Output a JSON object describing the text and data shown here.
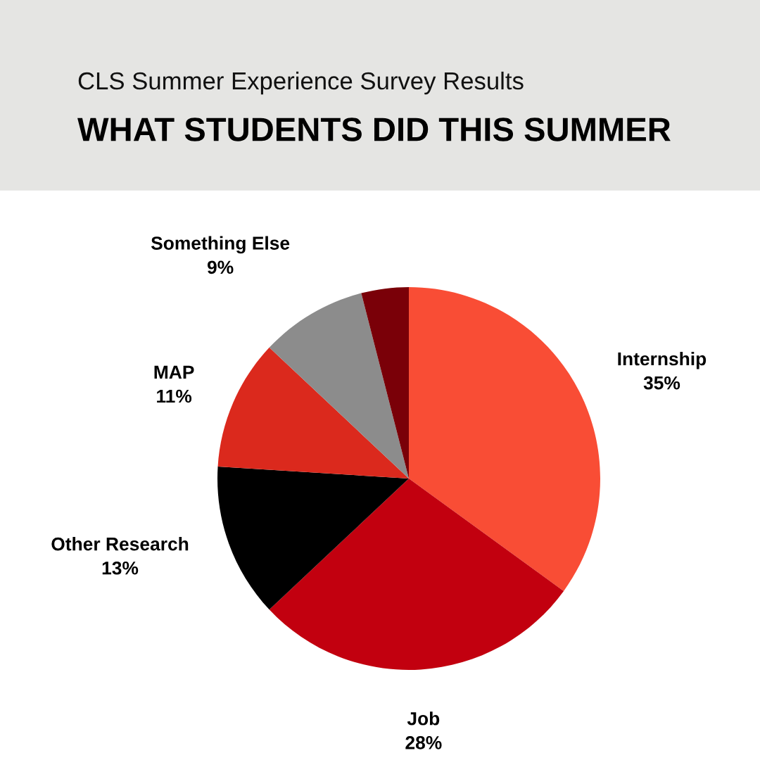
{
  "chart_data": {
    "type": "pie",
    "subtitle": "CLS Summer Experience Survey Results",
    "title": "WHAT STUDENTS DID THIS SUMMER",
    "categories": [
      "Internship",
      "Job",
      "Other Research",
      "MAP",
      "Something Else",
      null
    ],
    "values": [
      35,
      28,
      13,
      11,
      9,
      4
    ],
    "value_labels": [
      "35%",
      "28%",
      "13%",
      "11%",
      "9%",
      null
    ],
    "colors": [
      "#f94d35",
      "#c2000f",
      "#000000",
      "#db291d",
      "#8c8c8c",
      "#7a0008"
    ]
  }
}
